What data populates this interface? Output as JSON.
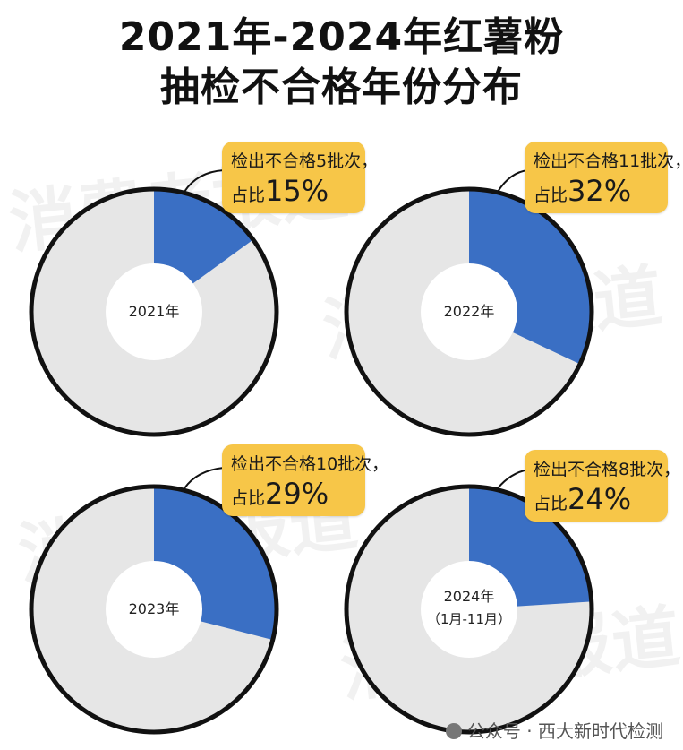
{
  "title_line1": "2021年-2024年红薯粉",
  "title_line2": "抽检不合格年份分布",
  "watermark_text": "消费者报道",
  "colors": {
    "unqualified": "#3a6fc4",
    "rest": "#e6e6e6",
    "callout": "#f7c648",
    "outline": "#111111"
  },
  "chart_data": [
    {
      "type": "pie",
      "center_label": "2021年",
      "center_sub": "",
      "batches_text": "检出不合格5批次，",
      "share_prefix": "占比",
      "share_text": "15%",
      "unqualified_share": 15
    },
    {
      "type": "pie",
      "center_label": "2022年",
      "center_sub": "",
      "batches_text": "检出不合格11批次，",
      "share_prefix": "占比",
      "share_text": "32%",
      "unqualified_share": 32
    },
    {
      "type": "pie",
      "center_label": "2023年",
      "center_sub": "",
      "batches_text": "检出不合格10批次，",
      "share_prefix": "占比",
      "share_text": "29%",
      "unqualified_share": 29
    },
    {
      "type": "pie",
      "center_label": "2024年",
      "center_sub": "（1月-11月）",
      "batches_text": "检出不合格8批次，",
      "share_prefix": "占比",
      "share_text": "24%",
      "unqualified_share": 24
    }
  ],
  "footer": {
    "source": "公众号 · 西大新时代检测"
  }
}
